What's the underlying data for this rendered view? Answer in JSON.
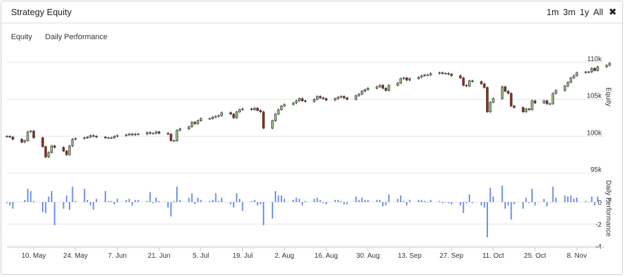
{
  "header": {
    "title": "Strategy Equity",
    "ranges": [
      "1m",
      "3m",
      "1y",
      "All"
    ]
  },
  "tabs": [
    "Equity",
    "Daily Performance"
  ],
  "colors": {
    "up": "#8fba7f",
    "down": "#9a2a12",
    "bar": "#6c8fe8",
    "grid": "#e6e6e6"
  },
  "chart_data": [
    {
      "type": "candlestick",
      "ylabel": "Equity",
      "ylim": [
        95000,
        111000
      ],
      "y_ticks": [
        95000,
        100000,
        105000,
        110000
      ],
      "y_tick_labels": [
        "95k",
        "100k",
        "105k",
        "110k"
      ],
      "x_start": "2019-05-01",
      "x_end": "2019-11-08",
      "x_ticks": [
        "2019-05-10",
        "2019-05-24",
        "2019-06-07",
        "2019-06-21",
        "2019-07-05",
        "2019-07-19",
        "2019-08-02",
        "2019-08-16",
        "2019-08-30",
        "2019-09-13",
        "2019-09-27",
        "2019-10-11",
        "2019-10-25",
        "2019-11-08"
      ],
      "x_tick_labels": [
        "10. May",
        "24. May",
        "7. Jun",
        "21. Jun",
        "5. Jul",
        "19. Jul",
        "2. Aug",
        "16. Aug",
        "30. Aug",
        "13. Sep",
        "27. Sep",
        "11. Oct",
        "25. Oct",
        "8. Nov"
      ],
      "close": [
        100000,
        99900,
        99600,
        99200,
        99400,
        100600,
        100700,
        99800,
        98600,
        97200,
        97800,
        98700,
        98500,
        98000,
        97500,
        98700,
        99600,
        99700,
        99800,
        99900,
        100100,
        100000,
        99900,
        99800,
        99800,
        99800,
        100000,
        100100,
        100200,
        100300,
        100200,
        100300,
        100300,
        100500,
        100400,
        100400,
        100600,
        100400,
        100300,
        99400,
        99400,
        100800,
        101000,
        101300,
        101900,
        101700,
        102100,
        102400,
        102400,
        102600,
        102700,
        102800,
        103200,
        103000,
        102500,
        103300,
        103600,
        103700,
        103600,
        103800,
        103500,
        103300,
        101100,
        102100,
        103000,
        103600,
        104100,
        104300,
        104500,
        104800,
        105100,
        104800,
        104700,
        105000,
        105400,
        105200,
        105100,
        104900,
        105100,
        105300,
        105400,
        105200,
        105000,
        105500,
        105700,
        106100,
        106300,
        106500,
        106700,
        106900,
        106500,
        106200,
        106900,
        107200,
        107800,
        107900,
        107600,
        107800,
        108000,
        108200,
        108300,
        108300,
        108500,
        108600,
        108500,
        108500,
        108400,
        108200,
        107900,
        106900,
        106800,
        107500,
        107400,
        107100,
        106600,
        103300,
        104600,
        105100,
        106700,
        106100,
        105800,
        104100,
        103900,
        103300,
        103700,
        103600,
        104800,
        104500,
        104800,
        104400,
        104400,
        105800,
        106200,
        106800,
        107300,
        107900,
        108200,
        108600,
        108700,
        108700,
        109200,
        108900,
        109400,
        109600,
        109900
      ],
      "open_offset_note": "",
      "daily_ylim": [
        -4,
        2
      ],
      "daily_y_ticks": [
        -4,
        -2,
        0
      ],
      "daily_y_tick_labels": [
        "-4",
        "-2",
        "0"
      ],
      "daily_ylabel": "Daily Performance",
      "daily_values": [
        -0.1,
        -0.3,
        -0.6,
        0.0,
        0.2,
        1.2,
        1.0,
        0.1,
        -0.9,
        -1.0,
        0.5,
        1.0,
        -2.1,
        -0.6,
        0.6,
        -0.7,
        1.4,
        0.1,
        1.2,
        0.2,
        -0.3,
        -0.7,
        0.3,
        1.0,
        0.1,
        0.1,
        -0.2,
        0.3,
        0.2,
        0.3,
        -0.3,
        0.2,
        0.2,
        0.1,
        0.9,
        -0.1,
        0.4,
        0.1,
        -0.5,
        -1.3,
        0.1,
        1.4,
        0.2,
        0.4,
        0.8,
        -0.2,
        0.4,
        0.2,
        0.1,
        0.2,
        0.8,
        0.1,
        0.4,
        -0.2,
        -0.5,
        0.8,
        0.3,
        -0.8,
        0.1,
        0.2,
        -0.3,
        -0.2,
        -2.1,
        -1.5,
        1.0,
        0.6,
        0.6,
        0.3,
        0.2,
        0.4,
        0.3,
        -0.3,
        0.1,
        0.3,
        0.4,
        0.2,
        -0.1,
        -0.2,
        0.2,
        0.2,
        0.1,
        -0.2,
        -0.2,
        0.5,
        0.2,
        0.4,
        0.2,
        0.2,
        0.2,
        0.2,
        -0.4,
        -0.3,
        0.7,
        0.3,
        0.6,
        0.1,
        -0.3,
        0.2,
        0.2,
        0.2,
        0.1,
        0.0,
        0.2,
        0.1,
        -0.1,
        0.0,
        -0.1,
        -0.2,
        -0.3,
        -1.0,
        -0.1,
        0.7,
        -0.1,
        -0.3,
        -0.5,
        -3.2,
        1.3,
        0.5,
        1.5,
        -0.6,
        -0.3,
        -1.6,
        -0.2,
        -0.6,
        0.4,
        -0.1,
        1.2,
        -0.3,
        0.3,
        -0.4,
        0.0,
        1.4,
        0.4,
        0.6,
        0.5,
        0.6,
        0.3,
        0.4,
        0.1,
        0.0,
        0.5,
        -0.3,
        0.5,
        0.2,
        0.3
      ]
    }
  ]
}
